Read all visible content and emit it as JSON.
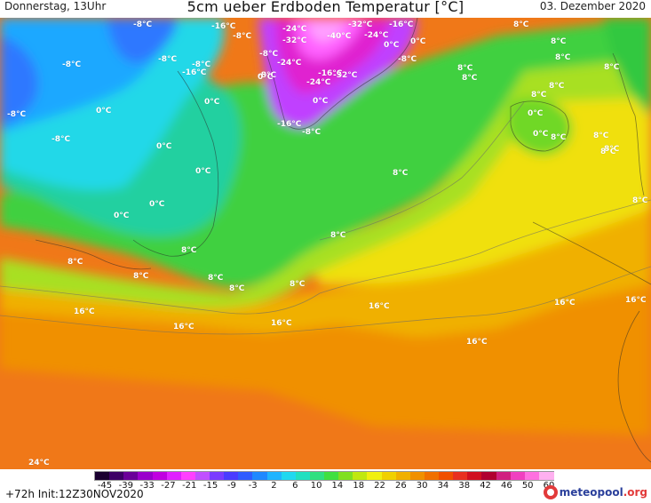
{
  "header": {
    "left": "Donnerstag, 13Uhr",
    "title": "5cm ueber Erdboden Temperatur [°C]",
    "right": "03. Dezember 2020"
  },
  "map": {
    "labels": [
      {
        "text": "-8°C"
      },
      {
        "text": "-16°C"
      },
      {
        "text": "-8°C"
      },
      {
        "text": "-24°C"
      },
      {
        "text": "-32°C"
      },
      {
        "text": "-16°C"
      },
      {
        "text": "-32°C"
      },
      {
        "text": "-40°C"
      },
      {
        "text": "-24°C"
      },
      {
        "text": "8°C"
      },
      {
        "text": "0°C"
      },
      {
        "text": "8°C"
      },
      {
        "text": "-8°C"
      },
      {
        "text": "-8°C"
      },
      {
        "text": "-8°C"
      },
      {
        "text": "-16°C"
      },
      {
        "text": "-8°C"
      },
      {
        "text": "-24°C"
      },
      {
        "text": "0°C"
      },
      {
        "text": "-16°C"
      },
      {
        "text": "-24°C"
      },
      {
        "text": "-32°C"
      },
      {
        "text": "8°C"
      },
      {
        "text": "-8°C"
      },
      {
        "text": "0°C"
      },
      {
        "text": "8°C"
      },
      {
        "text": "8°C"
      },
      {
        "text": "8°C"
      },
      {
        "text": "-8°C"
      },
      {
        "text": "0°C"
      },
      {
        "text": "0°C"
      },
      {
        "text": "0°C"
      },
      {
        "text": "8°C"
      },
      {
        "text": "0°C"
      },
      {
        "text": "-16°C"
      },
      {
        "text": "-8°C"
      },
      {
        "text": "-8°C"
      },
      {
        "text": "8°C"
      },
      {
        "text": "0°C"
      },
      {
        "text": "8°C"
      },
      {
        "text": "-8°C"
      },
      {
        "text": "0°C"
      },
      {
        "text": "8°C"
      },
      {
        "text": "8°C"
      },
      {
        "text": "8°C"
      },
      {
        "text": "0°C"
      },
      {
        "text": "0°C"
      },
      {
        "text": "8°C"
      },
      {
        "text": "8°C"
      },
      {
        "text": "8°C"
      },
      {
        "text": "8°C"
      },
      {
        "text": "0°C"
      },
      {
        "text": "8°C"
      },
      {
        "text": "8°C"
      },
      {
        "text": "8°C"
      },
      {
        "text": "8°C"
      },
      {
        "text": "8°C"
      },
      {
        "text": "16°C"
      },
      {
        "text": "16°C"
      },
      {
        "text": "16°C"
      },
      {
        "text": "16°C"
      },
      {
        "text": "16°C"
      },
      {
        "text": "16°C"
      },
      {
        "text": "16°C"
      },
      {
        "text": "24°C"
      }
    ]
  },
  "legend": {
    "ticks": [
      "-45",
      "-39",
      "-33",
      "-27",
      "-21",
      "-15",
      "-9",
      "-3",
      "2",
      "6",
      "10",
      "14",
      "18",
      "22",
      "26",
      "30",
      "34",
      "38",
      "42",
      "46",
      "50",
      "60"
    ],
    "colors": [
      "#1a0030",
      "#3d0066",
      "#6a0099",
      "#9a00cc",
      "#c000e0",
      "#e020ff",
      "#ff40ff",
      "#c050ff",
      "#7a3cff",
      "#4a3cff",
      "#2f5cff",
      "#1f88ff",
      "#1fb4ff",
      "#1fd8f0",
      "#20e0c0",
      "#30e080",
      "#40e040",
      "#80e020",
      "#c0e810",
      "#f0f010",
      "#f0d000",
      "#f0b000",
      "#f09000",
      "#f07000",
      "#f05000",
      "#e83020",
      "#d01020",
      "#b00030",
      "#d02080",
      "#f040c0",
      "#ff70e0",
      "#ffb0f0"
    ]
  },
  "footer": {
    "run": "+72h  Init:12Z30NOV2020",
    "logo_main": "meteopool",
    "logo_suffix": ".org"
  }
}
